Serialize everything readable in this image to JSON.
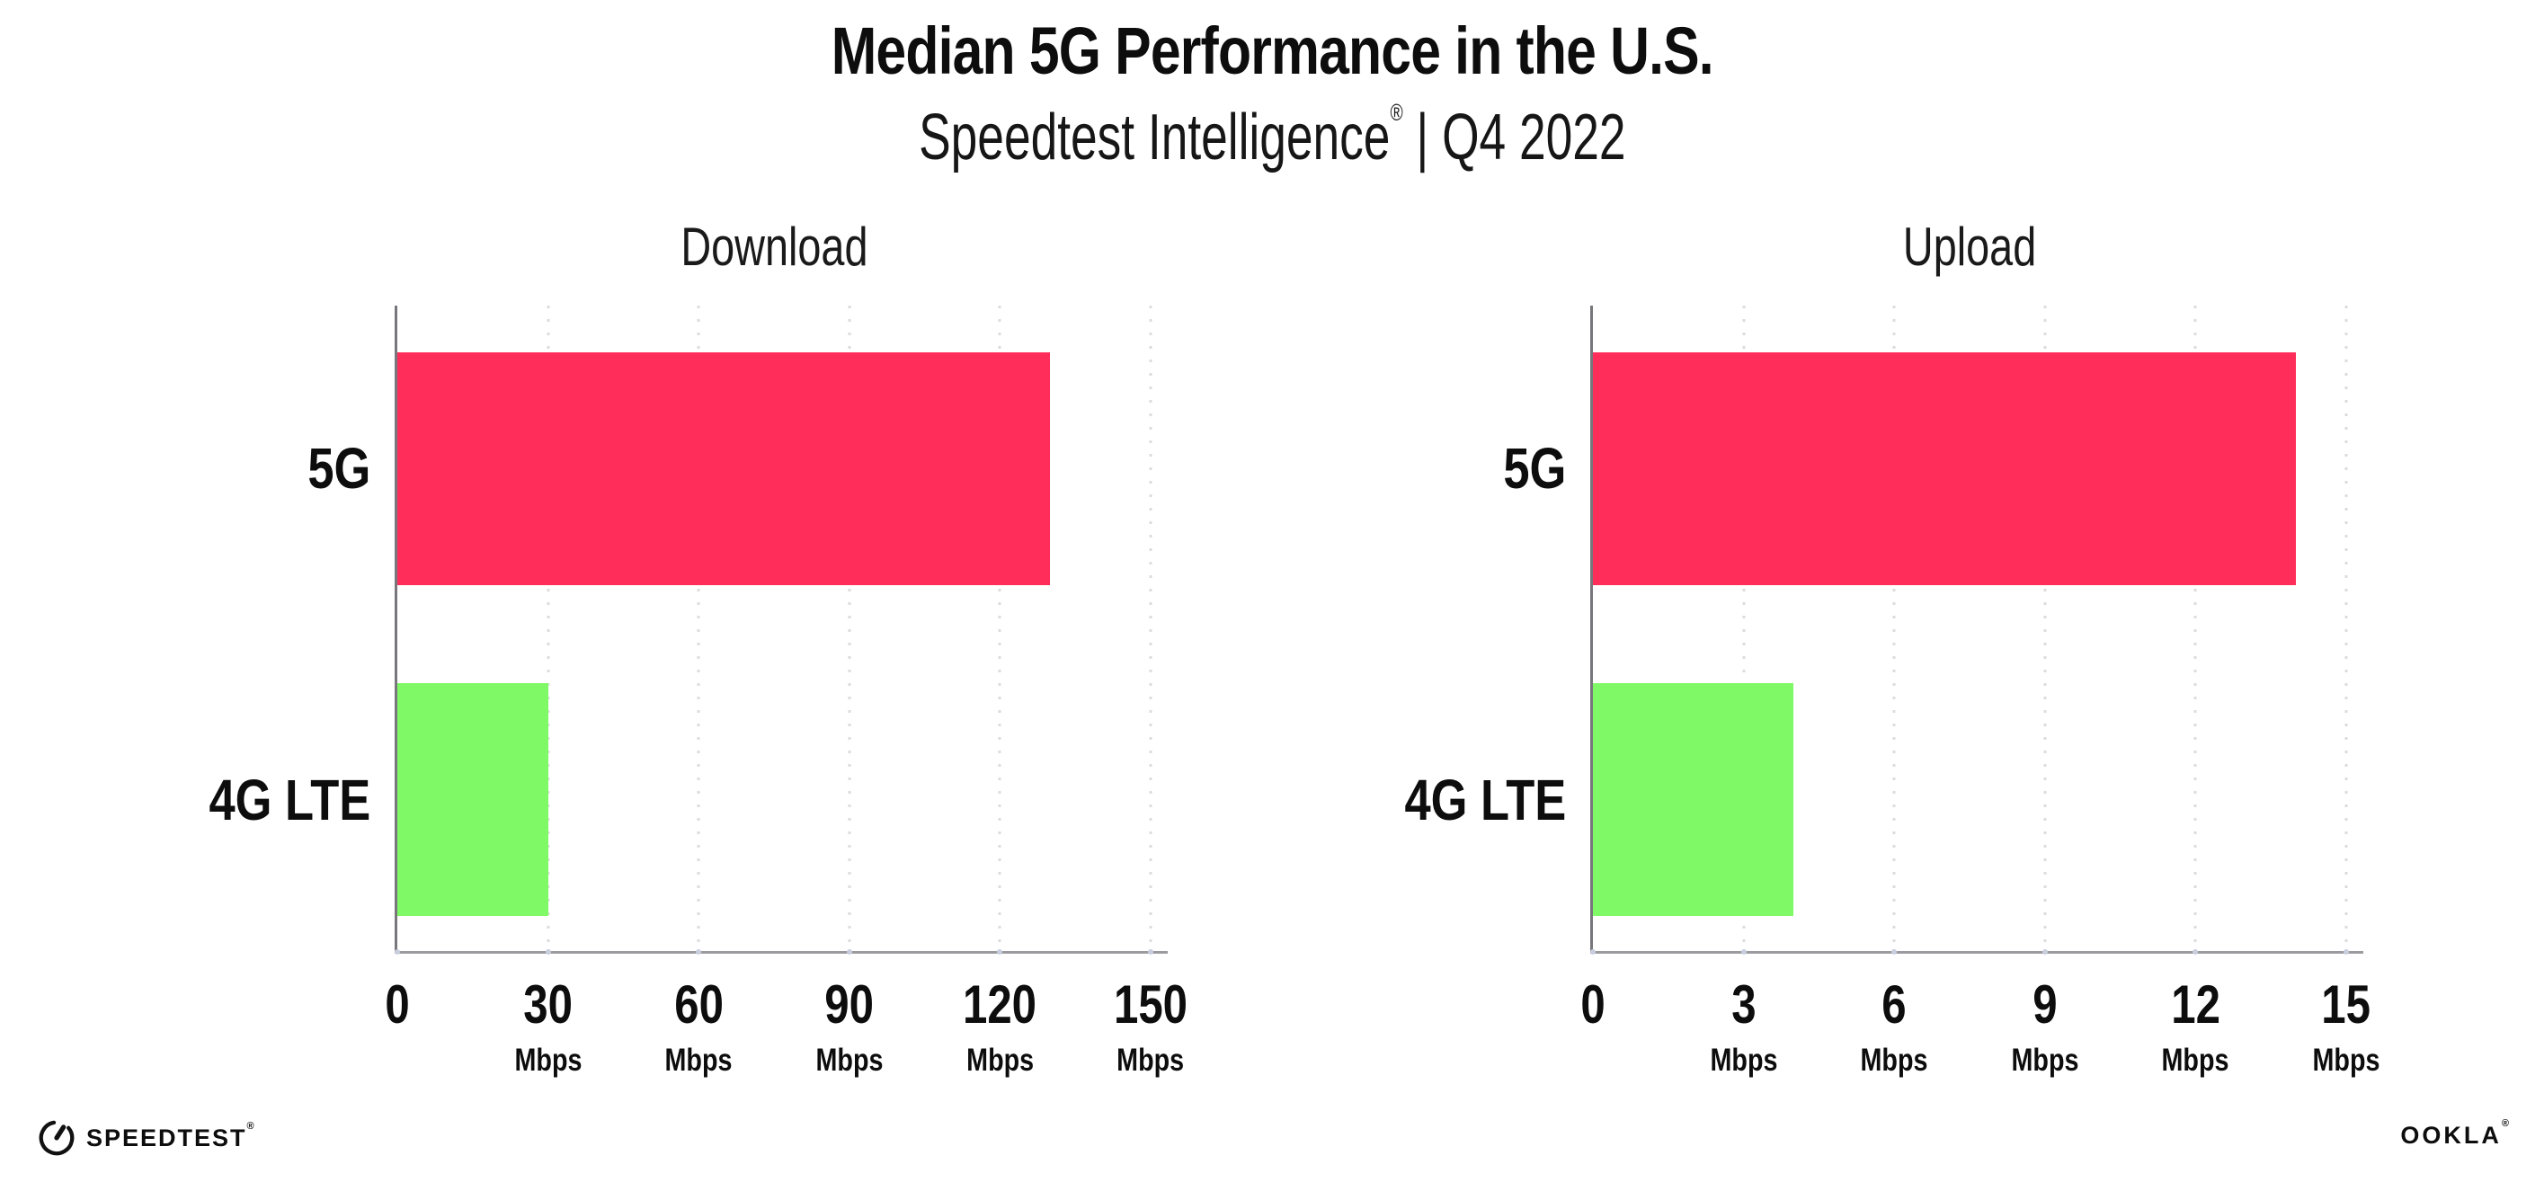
{
  "header": {
    "title": "Median 5G Performance in the U.S.",
    "subtitle_brand": "Speedtest Intelligence",
    "subtitle_regmark": "®",
    "subtitle_rest": " | Q4 2022"
  },
  "chart_data": [
    {
      "type": "bar",
      "orientation": "horizontal",
      "title": "Download",
      "categories": [
        "5G",
        "4G LTE"
      ],
      "values": [
        130,
        30
      ],
      "unit": "Mbps",
      "xlim": [
        0,
        150
      ],
      "xticks": [
        0,
        30,
        60,
        90,
        120,
        150
      ],
      "bar_colors": [
        "#FF2D5A",
        "#7FFA66"
      ],
      "grid": "vertical-dotted",
      "legend": "none"
    },
    {
      "type": "bar",
      "orientation": "horizontal",
      "title": "Upload",
      "categories": [
        "5G",
        "4G LTE"
      ],
      "values": [
        14,
        4
      ],
      "unit": "Mbps",
      "xlim": [
        0,
        15
      ],
      "xticks": [
        0,
        3,
        6,
        9,
        12,
        15
      ],
      "bar_colors": [
        "#FF2D5A",
        "#7FFA66"
      ],
      "grid": "vertical-dotted",
      "legend": "none"
    }
  ],
  "footer": {
    "speedtest_label": "SPEEDTEST",
    "speedtest_mark": "®",
    "ookla_label": "OOKLA",
    "ookla_mark": "®"
  },
  "colors": {
    "bar_5g": "#FF2D5A",
    "bar_4g_lte": "#7FFA66",
    "axis": "#9b9b9f",
    "gridline": "#dcdce0",
    "text": "#0d0d0d"
  }
}
